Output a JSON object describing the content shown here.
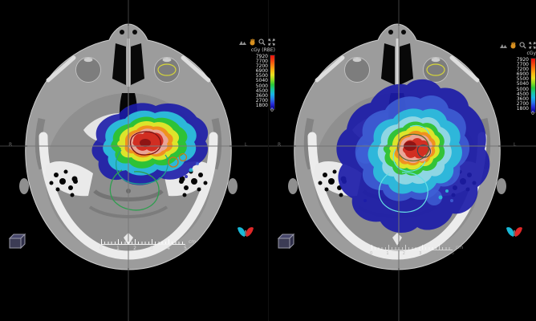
{
  "app": {
    "description_hint": "radiotherapy-planning-dual-axial-ct-dose-view",
    "background": "#000000"
  },
  "panels": {
    "left": {
      "legend_title": "cGy (RBE)"
    },
    "right": {
      "legend_title": "cGy"
    }
  },
  "legend": {
    "values": [
      "7920",
      "7700",
      "7200",
      "6900",
      "5500",
      "5040",
      "5000",
      "4500",
      "3600",
      "2700",
      "1800",
      "0"
    ],
    "colorbar_colors": [
      "#e81010",
      "#f04010",
      "#f87a10",
      "#f8b610",
      "#e8e020",
      "#90dc20",
      "#28c838",
      "#18c8a0",
      "#18b4e8",
      "#2878e8",
      "#2828d8",
      "#000088"
    ]
  },
  "toolbar": {
    "icons": [
      {
        "name": "measure-tool-icon"
      },
      {
        "name": "hand-tool-icon",
        "color": "#d89020"
      },
      {
        "name": "zoom-tool-icon"
      },
      {
        "name": "expand-view-icon"
      }
    ]
  },
  "orientation": {
    "left_label": "R",
    "right_label": "L"
  },
  "ruler": {
    "labels": [
      "0",
      "1",
      "2",
      "3",
      "4",
      "5"
    ],
    "unit": "cm"
  },
  "corner_icons": {
    "cube": "3d-cube-icon",
    "marker": "patient-orientation-marker-icon",
    "marker_left_color": "#19b9d8",
    "marker_right_color": "#e02828"
  },
  "dose": {
    "bands": {
      "low": "#1c1ca8",
      "low2": "#3f62d6",
      "cyan": "#2cc4dc",
      "pale": "#9fdce4",
      "green": "#2ec22e",
      "yellow": "#e6e62a",
      "orange": "#f08c1e",
      "salmon": "#e9a79d",
      "red": "#cf2a1e",
      "deep": "#8e1414"
    },
    "contours": {
      "teal": "#1fa08f",
      "green": "#2f9e4f",
      "darkred": "#7c1212",
      "orange_ring": "#c87818",
      "eye_yellow": "#d6d63a",
      "cyan_line": "#66e0e6",
      "olive": "#556b2f",
      "slate": "#37474f"
    },
    "crosshair_color": "#3f3f3f"
  }
}
